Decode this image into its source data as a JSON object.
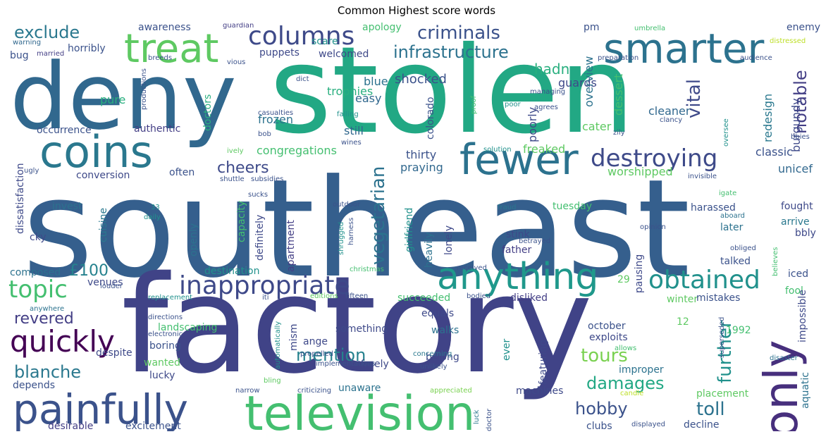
{
  "title": "Common Highest score words",
  "words": [
    {
      "text": "southeast",
      "color": "#355f8d"
    },
    {
      "text": "factory",
      "color": "#404387"
    },
    {
      "text": "stolen",
      "color": "#22a884"
    },
    {
      "text": "deny",
      "color": "#31688e"
    },
    {
      "text": "television",
      "color": "#44bf70"
    },
    {
      "text": "painfully",
      "color": "#3b528b"
    },
    {
      "text": "coins",
      "color": "#2a788e"
    },
    {
      "text": "smarter",
      "color": "#2c728e"
    },
    {
      "text": "fewer",
      "color": "#2c728e"
    },
    {
      "text": "treat",
      "color": "#5ec962"
    },
    {
      "text": "anything",
      "color": "#1f988b"
    },
    {
      "text": "only",
      "color": "#472f7d"
    },
    {
      "text": "columns",
      "color": "#3e4a89"
    },
    {
      "text": "destroying",
      "color": "#3e4a89"
    },
    {
      "text": "inappropriate",
      "color": "#3e4989"
    },
    {
      "text": "obtained",
      "color": "#21918c"
    },
    {
      "text": "quickly",
      "color": "#440154"
    },
    {
      "text": "topic",
      "color": "#44bf70"
    },
    {
      "text": "criminals",
      "color": "#3b528b"
    },
    {
      "text": "infrastructure",
      "color": "#2c728e"
    },
    {
      "text": "exclude",
      "color": "#2a788e"
    },
    {
      "text": "vegetarian",
      "color": "#2c728e"
    },
    {
      "text": "mention",
      "color": "#26828e"
    },
    {
      "text": "blanche",
      "color": "#2a788e"
    },
    {
      "text": "revered",
      "color": "#433e85"
    },
    {
      "text": "cheers",
      "color": "#3e4a89"
    },
    {
      "text": "damages",
      "color": "#22a884"
    },
    {
      "text": "tours",
      "color": "#7ad151"
    },
    {
      "text": "hobby",
      "color": "#3b528b"
    },
    {
      "text": "toll",
      "color": "#2c728e"
    },
    {
      "text": "further",
      "color": "#21918c"
    },
    {
      "text": "vital",
      "color": "#3e4989"
    },
    {
      "text": "notable",
      "color": "#433e85"
    },
    {
      "text": "hadn",
      "color": "#29af7f"
    },
    {
      "text": "£100",
      "color": "#26828e"
    },
    {
      "text": "blue",
      "color": "#2c728e"
    },
    {
      "text": "trophies",
      "color": "#29af7f"
    },
    {
      "text": "shocked",
      "color": "#3b528b"
    },
    {
      "text": "guards",
      "color": "#3e4989"
    },
    {
      "text": "pure",
      "color": "#29af7f"
    },
    {
      "text": "easy",
      "color": "#31688e"
    },
    {
      "text": "frozen",
      "color": "#2c728e"
    },
    {
      "text": "still",
      "color": "#31688e"
    },
    {
      "text": "congregations",
      "color": "#44bf70"
    },
    {
      "text": "thirty",
      "color": "#3b528b"
    },
    {
      "text": "praying",
      "color": "#31688e"
    },
    {
      "text": "freaked",
      "color": "#5ec962"
    },
    {
      "text": "worshipped",
      "color": "#5ec962"
    },
    {
      "text": "classic",
      "color": "#3b528b"
    },
    {
      "text": "unicef",
      "color": "#31688e"
    },
    {
      "text": "cleaner",
      "color": "#31688e"
    },
    {
      "text": "cater",
      "color": "#5ec962"
    },
    {
      "text": "poorly",
      "color": "#3e4a89"
    },
    {
      "text": "dessert",
      "color": "#44bf70"
    },
    {
      "text": "overview",
      "color": "#2c728e"
    },
    {
      "text": "redesign",
      "color": "#2a788e"
    },
    {
      "text": "burgundy",
      "color": "#3e4989"
    },
    {
      "text": "enemy",
      "color": "#3b528b"
    },
    {
      "text": "pm",
      "color": "#3b528b"
    },
    {
      "text": "apology",
      "color": "#44bf70"
    },
    {
      "text": "awareness",
      "color": "#3b528b"
    },
    {
      "text": "horribly",
      "color": "#3b528b"
    },
    {
      "text": "puppets",
      "color": "#3e4989"
    },
    {
      "text": "welcomed",
      "color": "#3e4989"
    },
    {
      "text": "scare",
      "color": "#21918c"
    },
    {
      "text": "occurrence",
      "color": "#3b528b"
    },
    {
      "text": "authentic",
      "color": "#433e85"
    },
    {
      "text": "conversion",
      "color": "#3e4989"
    },
    {
      "text": "often",
      "color": "#3b528b"
    },
    {
      "text": "doctors",
      "color": "#29af7f"
    },
    {
      "text": "colorado",
      "color": "#3b528b"
    },
    {
      "text": "capacity",
      "color": "#44bf70"
    },
    {
      "text": "definitely",
      "color": "#3e4989"
    },
    {
      "text": "openly",
      "color": "#2c728e"
    },
    {
      "text": "cuisine",
      "color": "#2a788e"
    },
    {
      "text": "invest",
      "color": "#2c728e"
    },
    {
      "text": "cky",
      "color": "#3e4989"
    },
    {
      "text": "dissatisfaction",
      "color": "#3e4989"
    },
    {
      "text": "bug",
      "color": "#3b528b"
    },
    {
      "text": "composed",
      "color": "#2c728e"
    },
    {
      "text": "venues",
      "color": "#3e4989"
    },
    {
      "text": "destination",
      "color": "#21918c"
    },
    {
      "text": "apartment",
      "color": "#433e85"
    },
    {
      "text": "girlfriend",
      "color": "#21918c"
    },
    {
      "text": "heavily",
      "color": "#2c728e"
    },
    {
      "text": "lonely",
      "color": "#3e4989"
    },
    {
      "text": "stink",
      "color": "#3e4989"
    },
    {
      "text": "father",
      "color": "#433e85"
    },
    {
      "text": "tuesday",
      "color": "#44bf70"
    },
    {
      "text": "harassed",
      "color": "#3b528b"
    },
    {
      "text": "later",
      "color": "#2c728e"
    },
    {
      "text": "arrive",
      "color": "#2a788e"
    },
    {
      "text": "fought",
      "color": "#3e4989"
    },
    {
      "text": "bbly",
      "color": "#3e4989"
    },
    {
      "text": "talked",
      "color": "#3b528b"
    },
    {
      "text": "pausing",
      "color": "#3e4989"
    },
    {
      "text": "iced",
      "color": "#3b528b"
    },
    {
      "text": "fool",
      "color": "#44bf70"
    },
    {
      "text": "impossible",
      "color": "#3e4989"
    },
    {
      "text": "aquatic",
      "color": "#2c728e"
    },
    {
      "text": "succeeded",
      "color": "#44bf70"
    },
    {
      "text": "disliked",
      "color": "#433e85"
    },
    {
      "text": "winter",
      "color": "#5ec962"
    },
    {
      "text": "mistakes",
      "color": "#3b528b"
    },
    {
      "text": "equals",
      "color": "#3e4989"
    },
    {
      "text": "something",
      "color": "#3e4989"
    },
    {
      "text": "walks",
      "color": "#2c728e"
    },
    {
      "text": "october",
      "color": "#3b528b"
    },
    {
      "text": "exploits",
      "color": "#3e4989"
    },
    {
      "text": "1992",
      "color": "#44bf70"
    },
    {
      "text": "landscaping",
      "color": "#44bf70"
    },
    {
      "text": "boring",
      "color": "#3b528b"
    },
    {
      "text": "wanted",
      "color": "#5ec962"
    },
    {
      "text": "despite",
      "color": "#3e4989"
    },
    {
      "text": "lucky",
      "color": "#3e4989"
    },
    {
      "text": "depends",
      "color": "#3b528b"
    },
    {
      "text": "desirable",
      "color": "#433e85"
    },
    {
      "text": "excitement",
      "color": "#3b528b"
    },
    {
      "text": "unaware",
      "color": "#2c728e"
    },
    {
      "text": "machines",
      "color": "#3e4989"
    },
    {
      "text": "clubs",
      "color": "#3b528b"
    },
    {
      "text": "placement",
      "color": "#5ec962"
    },
    {
      "text": "decline",
      "color": "#3b528b"
    },
    {
      "text": "belong",
      "color": "#3e4989"
    },
    {
      "text": "freely",
      "color": "#3e4989"
    },
    {
      "text": "ange",
      "color": "#3e4989"
    },
    {
      "text": "mism",
      "color": "#3e4989"
    },
    {
      "text": "ever",
      "color": "#21918c"
    },
    {
      "text": "featuring",
      "color": "#3e4989"
    },
    {
      "text": "improper",
      "color": "#2c728e"
    },
    {
      "text": "12",
      "color": "#5ec962"
    },
    {
      "text": "29",
      "color": "#5ec962"
    },
    {
      "text": "guardian",
      "color": "#433e85"
    },
    {
      "text": "warning",
      "color": "#31688e"
    },
    {
      "text": "married",
      "color": "#433e85"
    },
    {
      "text": "breeds",
      "color": "#3b528b"
    },
    {
      "text": "vious",
      "color": "#3b528b"
    },
    {
      "text": "dict",
      "color": "#3b528b"
    },
    {
      "text": "productions",
      "color": "#3b528b"
    },
    {
      "text": "casualties",
      "color": "#3b528b"
    },
    {
      "text": "bob",
      "color": "#3b528b"
    },
    {
      "text": "ively",
      "color": "#5ec962"
    },
    {
      "text": "wines",
      "color": "#3b528b"
    },
    {
      "text": "shuttle",
      "color": "#3b528b"
    },
    {
      "text": "subsidies",
      "color": "#3b528b"
    },
    {
      "text": "sucks",
      "color": "#3b528b"
    },
    {
      "text": "ugly",
      "color": "#3b528b"
    },
    {
      "text": "33",
      "color": "#21918c"
    },
    {
      "text": "daily",
      "color": "#21918c"
    },
    {
      "text": "outdoor",
      "color": "#3b528b"
    },
    {
      "text": "shrugged",
      "color": "#21918c"
    },
    {
      "text": "harness",
      "color": "#3b528b"
    },
    {
      "text": "christmas",
      "color": "#44bf70"
    },
    {
      "text": "louder",
      "color": "#3b528b"
    },
    {
      "text": "replacement",
      "color": "#21918c"
    },
    {
      "text": "anywhere",
      "color": "#2c728e"
    },
    {
      "text": "iti",
      "color": "#3b528b"
    },
    {
      "text": "editions",
      "color": "#5ec962"
    },
    {
      "text": "fifteen",
      "color": "#3b528b"
    },
    {
      "text": "automatically",
      "color": "#21918c"
    },
    {
      "text": "directions",
      "color": "#3b528b"
    },
    {
      "text": "electronic",
      "color": "#3b528b"
    },
    {
      "text": "propelled",
      "color": "#3b528b"
    },
    {
      "text": "implementations",
      "color": "#3b528b"
    },
    {
      "text": "bling",
      "color": "#5ec962"
    },
    {
      "text": "criticizing",
      "color": "#3b528b"
    },
    {
      "text": "narrow",
      "color": "#3b528b"
    },
    {
      "text": "appreciated",
      "color": "#7ad151"
    },
    {
      "text": "luck",
      "color": "#2a788e"
    },
    {
      "text": "doctor",
      "color": "#3b528b"
    },
    {
      "text": "displayed",
      "color": "#3b528b"
    },
    {
      "text": "unlikely",
      "color": "#3b528b"
    },
    {
      "text": "concerning",
      "color": "#2a788e"
    },
    {
      "text": "candle",
      "color": "#bddf26"
    },
    {
      "text": "allows",
      "color": "#44bf70"
    },
    {
      "text": "bodied",
      "color": "#3b528b"
    },
    {
      "text": "superseded",
      "color": "#3b528b"
    },
    {
      "text": "disaster",
      "color": "#2c728e"
    },
    {
      "text": "received",
      "color": "#3b528b"
    },
    {
      "text": "opinion",
      "color": "#3b528b"
    },
    {
      "text": "betrayed",
      "color": "#3b528b"
    },
    {
      "text": "obliged",
      "color": "#3b528b"
    },
    {
      "text": "believes",
      "color": "#44bf70"
    },
    {
      "text": "fraud",
      "color": "#2a788e"
    },
    {
      "text": "aboard",
      "color": "#2c728e"
    },
    {
      "text": "igate",
      "color": "#44bf70"
    },
    {
      "text": "invisible",
      "color": "#3b528b"
    },
    {
      "text": "solution",
      "color": "#21918c"
    },
    {
      "text": "clancy",
      "color": "#3b528b"
    },
    {
      "text": "bbies",
      "color": "#3b528b"
    },
    {
      "text": "zily",
      "color": "#3b528b"
    },
    {
      "text": "oversee",
      "color": "#21918c"
    },
    {
      "text": "agrees",
      "color": "#3b528b"
    },
    {
      "text": "managing",
      "color": "#3b528b"
    },
    {
      "text": "poor",
      "color": "#21918c"
    },
    {
      "text": "proof",
      "color": "#44bf70"
    },
    {
      "text": "falling",
      "color": "#21918c"
    },
    {
      "text": "preparation",
      "color": "#3b528b"
    },
    {
      "text": "audience",
      "color": "#3b528b"
    },
    {
      "text": "umbrella",
      "color": "#44bf70"
    },
    {
      "text": "distressed",
      "color": "#bddf26"
    }
  ]
}
